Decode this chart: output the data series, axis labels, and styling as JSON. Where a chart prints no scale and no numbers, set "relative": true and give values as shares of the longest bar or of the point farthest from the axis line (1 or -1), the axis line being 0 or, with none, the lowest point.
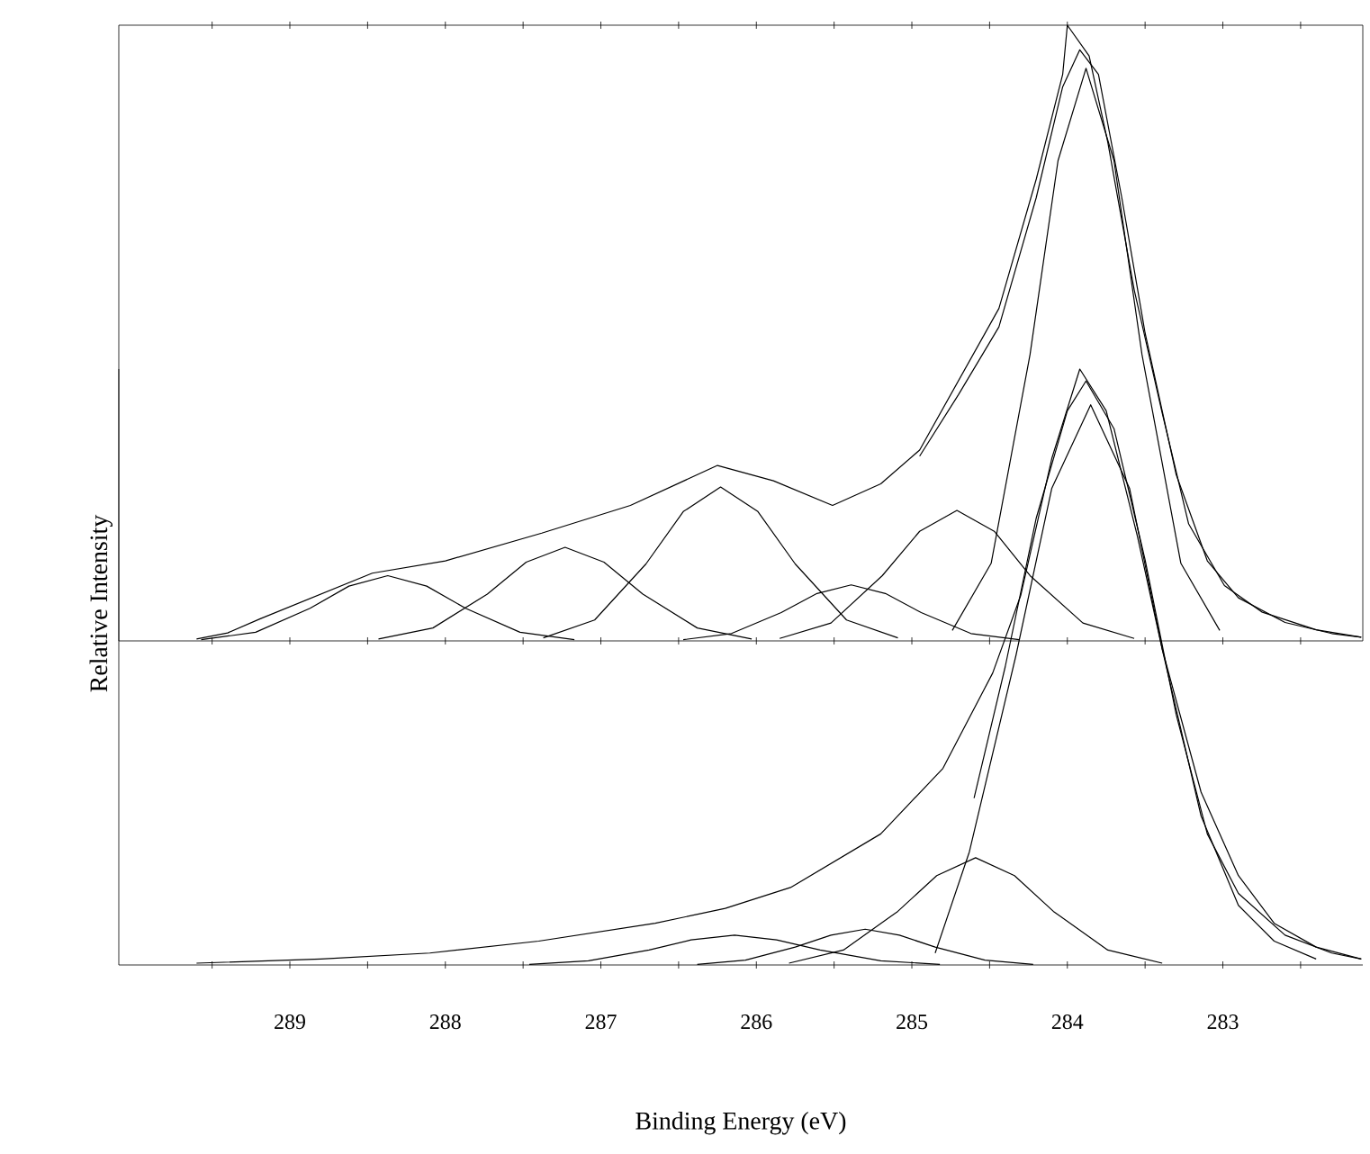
{
  "chart_data": [
    {
      "type": "line",
      "ylabel": "Relative Intensity",
      "relative": true,
      "tick_labels": false,
      "marker": "none",
      "line_style": "solid",
      "xlim": [
        290.1,
        282.1
      ],
      "xticks": [
        {
          "value": 289.5,
          "label": null
        },
        289,
        {
          "value": 288.5,
          "label": null
        },
        288,
        {
          "value": 287.5,
          "label": null
        },
        287,
        {
          "value": 286.5,
          "label": null
        },
        286,
        {
          "value": 285.5,
          "label": null
        },
        285,
        {
          "value": 284.5,
          "label": null
        },
        284,
        {
          "value": 283.5,
          "label": null
        },
        283,
        {
          "value": 282.5,
          "label": null
        }
      ],
      "series": [
        {
          "color": "#000000",
          "x": [
            289.6,
            289.4,
            289.19,
            288.47,
            288.0,
            287.38,
            286.81,
            286.25,
            285.89,
            285.51,
            285.2,
            284.95,
            284.44,
            284.2,
            284.03,
            284.0,
            283.86,
            283.74,
            283.57,
            283.39,
            283.22,
            282.99,
            282.75,
            282.4,
            282.11
          ],
          "values": [
            0.003,
            0.013,
            0.036,
            0.11,
            0.13,
            0.175,
            0.22,
            0.285,
            0.26,
            0.22,
            0.255,
            0.31,
            0.54,
            0.75,
            0.92,
            1.0,
            0.95,
            0.81,
            0.57,
            0.37,
            0.19,
            0.09,
            0.047,
            0.018,
            0.006
          ]
        },
        {
          "color": "#000000",
          "x": [
            284.95,
            284.7,
            284.44,
            284.2,
            284.03,
            283.92,
            283.8,
            283.65,
            283.5,
            283.3,
            283.1,
            282.9,
            282.6,
            282.3,
            282.11
          ],
          "values": [
            0.3,
            0.4,
            0.51,
            0.72,
            0.9,
            0.96,
            0.92,
            0.72,
            0.5,
            0.27,
            0.13,
            0.07,
            0.03,
            0.012,
            0.006
          ]
        },
        {
          "color": "#000000",
          "x": [
            289.57,
            289.22,
            288.87,
            288.62,
            288.37,
            288.12,
            287.87,
            287.52,
            287.17
          ],
          "values": [
            0.002,
            0.014,
            0.053,
            0.089,
            0.106,
            0.089,
            0.053,
            0.014,
            0.002
          ]
        },
        {
          "color": "#000000",
          "x": [
            288.43,
            288.08,
            287.73,
            287.48,
            287.23,
            286.98,
            286.73,
            286.38,
            286.03
          ],
          "values": [
            0.003,
            0.021,
            0.076,
            0.128,
            0.152,
            0.128,
            0.076,
            0.021,
            0.003
          ]
        },
        {
          "color": "#000000",
          "x": [
            287.37,
            287.04,
            286.71,
            286.47,
            286.23,
            285.99,
            285.75,
            285.42,
            285.09
          ],
          "values": [
            0.005,
            0.034,
            0.125,
            0.21,
            0.25,
            0.21,
            0.125,
            0.034,
            0.005
          ]
        },
        {
          "color": "#000000",
          "x": [
            286.47,
            286.16,
            285.84,
            285.61,
            285.39,
            285.17,
            284.94,
            284.62,
            284.31
          ],
          "values": [
            0.002,
            0.012,
            0.046,
            0.077,
            0.091,
            0.077,
            0.046,
            0.012,
            0.002
          ]
        },
        {
          "color": "#000000",
          "x": [
            285.85,
            285.52,
            285.19,
            284.95,
            284.71,
            284.47,
            284.24,
            283.9,
            283.57
          ],
          "values": [
            0.004,
            0.029,
            0.106,
            0.178,
            0.212,
            0.178,
            0.106,
            0.029,
            0.004
          ]
        },
        {
          "color": "#000000",
          "x": [
            284.74,
            284.49,
            284.24,
            284.06,
            283.88,
            283.7,
            283.52,
            283.27,
            283.02
          ],
          "values": [
            0.017,
            0.126,
            0.465,
            0.78,
            0.93,
            0.78,
            0.465,
            0.126,
            0.017
          ]
        }
      ]
    },
    {
      "type": "line",
      "xlabel": "Binding Energy (eV)",
      "relative": true,
      "tick_labels": "x",
      "marker": "none",
      "line_style": "solid",
      "xlim": [
        290.1,
        282.1
      ],
      "xticks": [
        {
          "value": 289.5,
          "label": null
        },
        289,
        {
          "value": 288.5,
          "label": null
        },
        288,
        {
          "value": 287.5,
          "label": null
        },
        287,
        {
          "value": 286.5,
          "label": null
        },
        286,
        {
          "value": 285.5,
          "label": null
        },
        285,
        {
          "value": 284.5,
          "label": null
        },
        284,
        {
          "value": 283.5,
          "label": null
        },
        283,
        {
          "value": 282.5,
          "label": null
        }
      ],
      "series": [
        {
          "color": "#000000",
          "x": [
            289.6,
            288.8,
            288.1,
            287.4,
            286.65,
            286.2,
            285.78,
            285.2,
            284.8,
            284.48,
            284.3,
            284.1,
            283.92,
            283.75,
            283.55,
            283.39,
            283.14,
            282.9,
            282.67,
            282.4,
            282.11
          ],
          "values": [
            0.003,
            0.01,
            0.02,
            0.04,
            0.07,
            0.095,
            0.13,
            0.22,
            0.33,
            0.49,
            0.62,
            0.85,
            1.0,
            0.93,
            0.72,
            0.53,
            0.29,
            0.15,
            0.07,
            0.03,
            0.01
          ]
        },
        {
          "color": "#000000",
          "x": [
            284.6,
            284.4,
            284.2,
            284.0,
            283.88,
            283.7,
            283.5,
            283.3,
            283.1,
            282.9,
            282.6,
            282.3,
            282.11
          ],
          "values": [
            0.28,
            0.5,
            0.75,
            0.93,
            0.98,
            0.9,
            0.68,
            0.42,
            0.22,
            0.12,
            0.05,
            0.02,
            0.01
          ]
        },
        {
          "color": "#000000",
          "x": [
            284.85,
            284.63,
            284.33,
            284.1,
            283.85,
            283.6,
            283.39,
            283.14,
            282.9,
            282.67,
            282.4
          ],
          "values": [
            0.02,
            0.19,
            0.52,
            0.8,
            0.94,
            0.8,
            0.53,
            0.25,
            0.1,
            0.04,
            0.01
          ]
        },
        {
          "color": "#000000",
          "x": [
            285.79,
            285.44,
            285.09,
            284.84,
            284.59,
            284.34,
            284.09,
            283.74,
            283.39
          ],
          "values": [
            0.003,
            0.025,
            0.09,
            0.15,
            0.18,
            0.15,
            0.09,
            0.025,
            0.003
          ]
        },
        {
          "color": "#000000",
          "x": [
            286.38,
            286.07,
            285.75,
            285.52,
            285.3,
            285.08,
            284.85,
            284.53,
            284.22
          ],
          "values": [
            0.001,
            0.008,
            0.03,
            0.05,
            0.06,
            0.05,
            0.03,
            0.008,
            0.001
          ]
        },
        {
          "color": "#000000",
          "x": [
            287.46,
            287.08,
            286.69,
            286.42,
            286.14,
            285.87,
            285.59,
            285.2,
            284.82
          ],
          "values": [
            0.001,
            0.007,
            0.025,
            0.042,
            0.05,
            0.042,
            0.025,
            0.007,
            0.001
          ]
        }
      ]
    }
  ]
}
